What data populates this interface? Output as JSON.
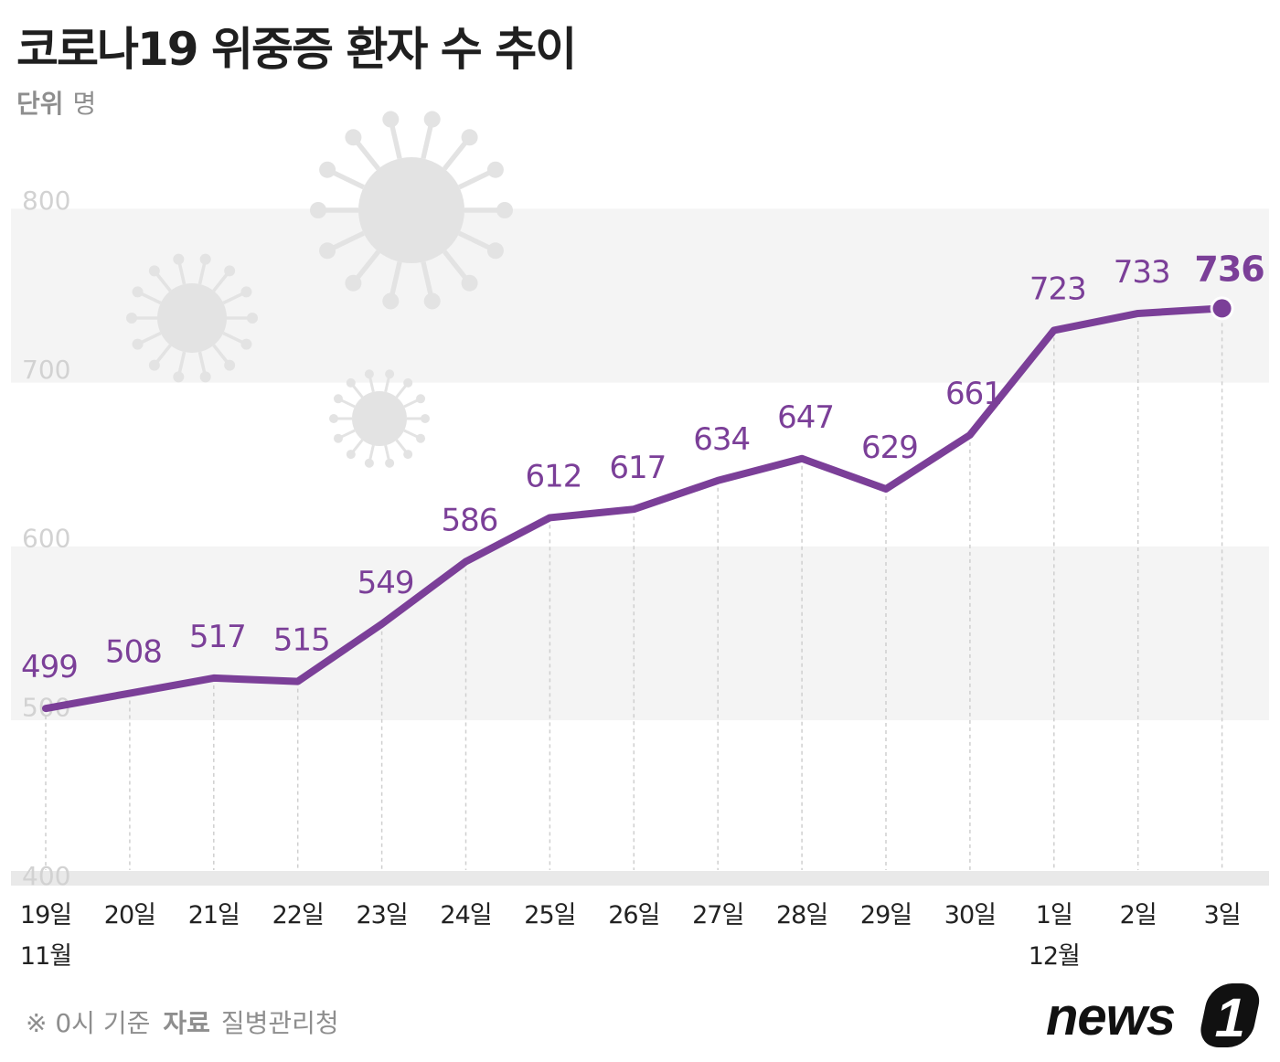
{
  "header": {
    "title": "코로나19 위중증 환자 수 추이",
    "unit_label": "단위",
    "unit_value": "명"
  },
  "footer": {
    "note": "※ 0시 기준",
    "source_label": "자료",
    "source_value": "질병관리청"
  },
  "brand": {
    "logo_text": "news",
    "logo_mark": "1"
  },
  "colors": {
    "line": "#7b3f98",
    "label": "#7b3f98",
    "band": "#f4f4f4",
    "axis_text": "#d2d2d2",
    "tick_text": "#222222",
    "virus": "#e3e3e3"
  },
  "chart_data": {
    "type": "line",
    "title": "코로나19 위중증 환자 수 추이",
    "ylabel": "단위 명",
    "ylim": [
      400,
      800
    ],
    "yticks": [
      400,
      500,
      600,
      700,
      800
    ],
    "x": [
      "19일",
      "20일",
      "21일",
      "22일",
      "23일",
      "24일",
      "25일",
      "26일",
      "27일",
      "28일",
      "29일",
      "30일",
      "1일",
      "2일",
      "3일"
    ],
    "month_labels": [
      {
        "index": 0,
        "label": "11월"
      },
      {
        "index": 12,
        "label": "12월"
      }
    ],
    "values": [
      499,
      508,
      517,
      515,
      549,
      586,
      612,
      617,
      634,
      647,
      629,
      661,
      723,
      733,
      736
    ],
    "highlight_last": true,
    "grid": true
  }
}
